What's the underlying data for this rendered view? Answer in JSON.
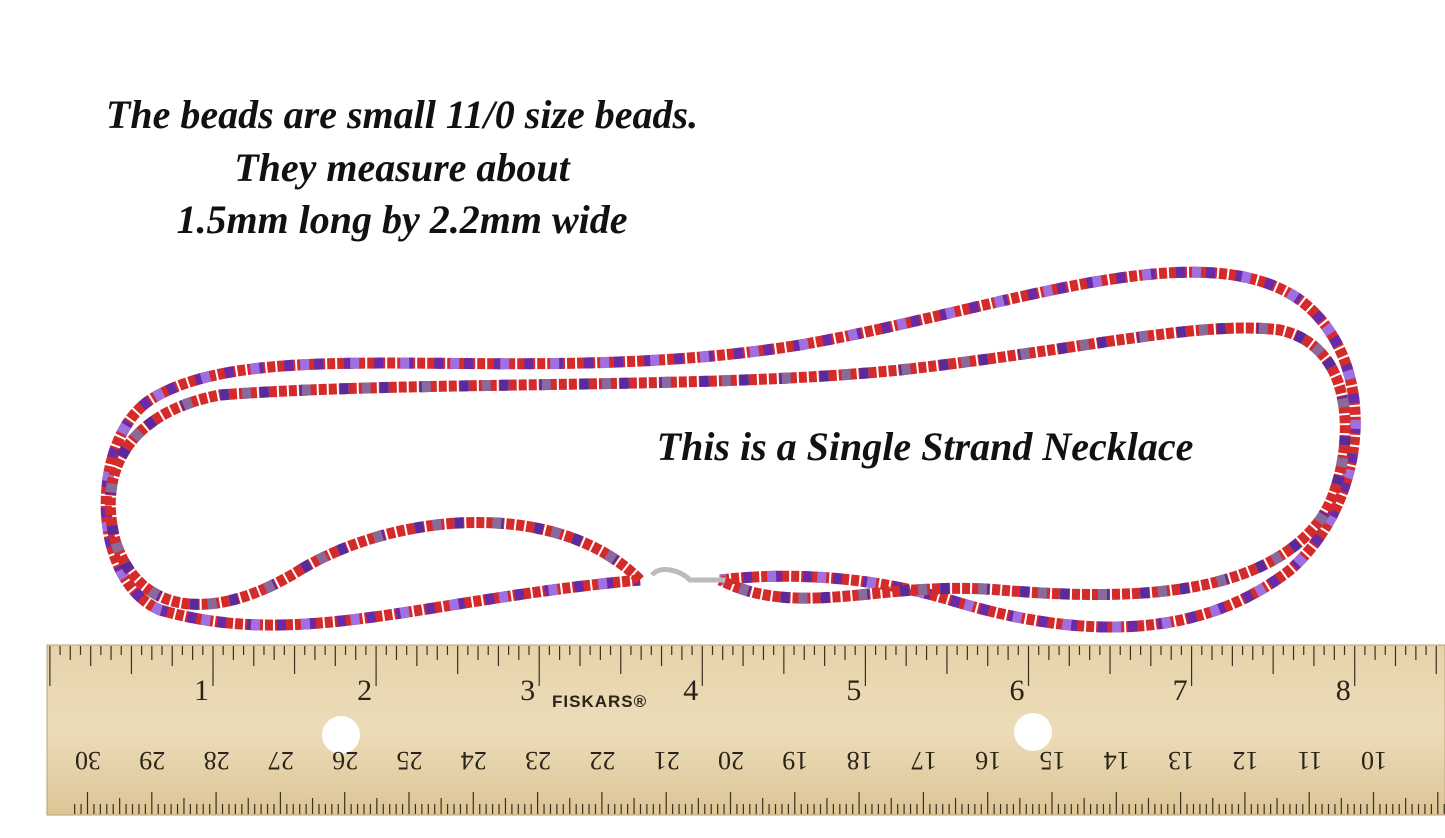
{
  "caption": {
    "lines": [
      "The beads are small 11/0 size beads.",
      "They measure about",
      "1.5mm long by 2.2mm wide"
    ]
  },
  "note": "This is a Single Strand Necklace",
  "ruler": {
    "brand": "FISKARS®",
    "inch_labels": [
      "1",
      "2",
      "3",
      "4",
      "5",
      "6",
      "7",
      "8"
    ],
    "cm_labels": [
      "30",
      "29",
      "28",
      "27",
      "26",
      "25",
      "24",
      "23",
      "22",
      "21",
      "20",
      "19",
      "18",
      "17",
      "16",
      "15",
      "14",
      "13",
      "12",
      "11",
      "10"
    ]
  }
}
